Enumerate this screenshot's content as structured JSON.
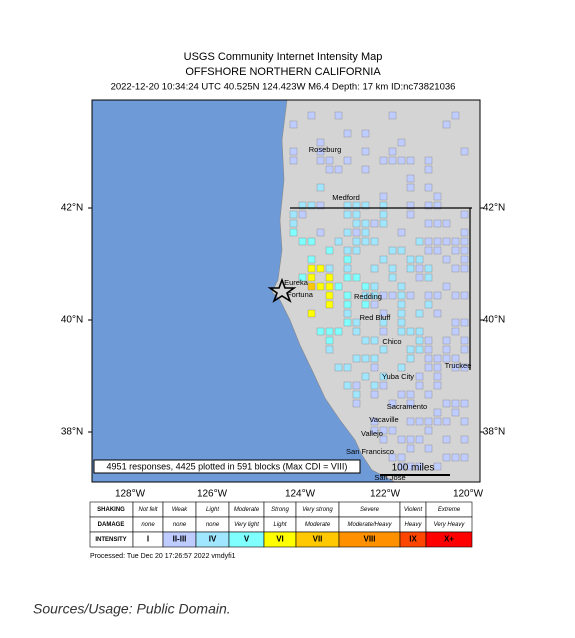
{
  "header": {
    "title": "USGS Community Internet Intensity Map",
    "region": "OFFSHORE NORTHERN CALIFORNIA",
    "event": "2022-12-20 10:34:24 UTC 40.525N 124.423W M6.4 Depth: 17 km ID:nc73821036"
  },
  "map": {
    "lat_labels": [
      "42°N",
      "40°N",
      "38°N"
    ],
    "lon_labels": [
      "128°W",
      "126°W",
      "124°W",
      "122°W",
      "120°W"
    ],
    "places": [
      "Roseburg",
      "Medford",
      "Eureka",
      "Fortuna",
      "Redding",
      "Red Bluff",
      "Chico",
      "Yuba City",
      "Sacramento",
      "Vacaville",
      "Vallejo",
      "San Francisco",
      "San Jose",
      "Truckee"
    ],
    "info": "4951 responses, 4425 plotted in 591 blocks (Max CDI = VIII)",
    "scale": "100 miles"
  },
  "legend": {
    "rows": [
      {
        "label": "SHAKING",
        "cells": [
          "Not felt",
          "Weak",
          "Light",
          "Moderate",
          "Strong",
          "Very strong",
          "Severe",
          "Violent",
          "Extreme"
        ]
      },
      {
        "label": "DAMAGE",
        "cells": [
          "none",
          "none",
          "none",
          "Very light",
          "Light",
          "Moderate",
          "Moderate/Heavy",
          "Heavy",
          "Very Heavy"
        ]
      },
      {
        "label": "INTENSITY",
        "cells": [
          "I",
          "II-III",
          "IV",
          "V",
          "VI",
          "VII",
          "VIII",
          "IX",
          "X+"
        ]
      }
    ],
    "colors": [
      "#ffffff",
      "#bfccff",
      "#a0e6ff",
      "#80ffff",
      "#ffff00",
      "#ffc800",
      "#ff9100",
      "#ff4600",
      "#ff0000"
    ]
  },
  "processed": "Processed: Tue Dec 20 17:26:57 2022 vmdyfi1",
  "caption": "Sources/Usage: Public Domain."
}
